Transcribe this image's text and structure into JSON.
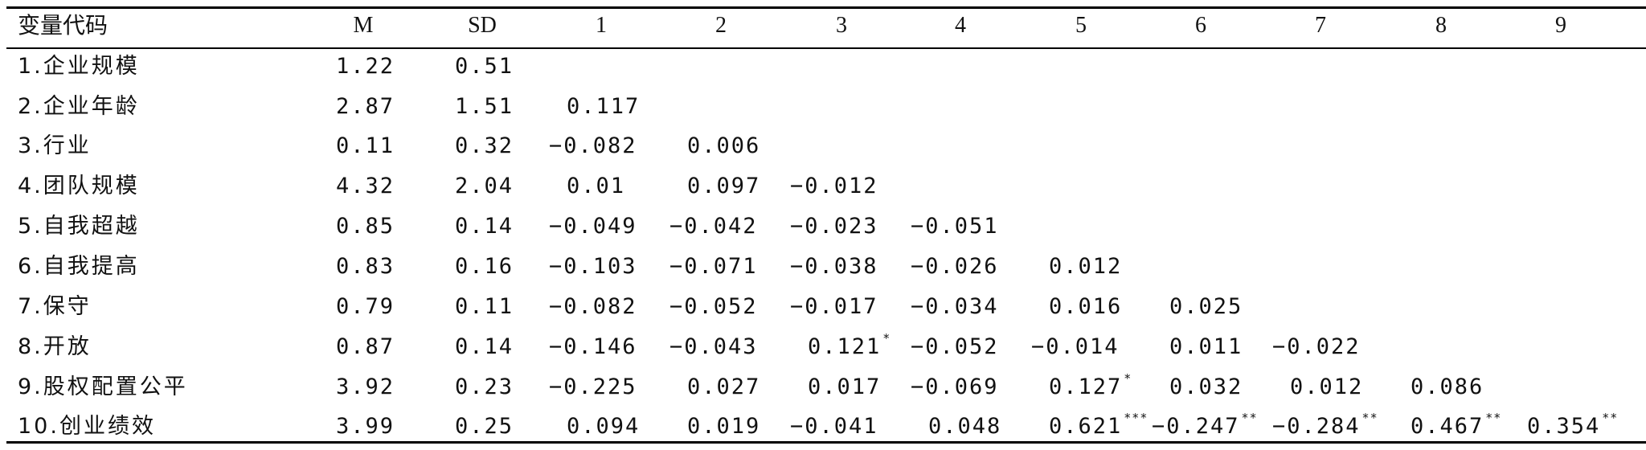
{
  "table": {
    "headers": [
      "变量代码",
      "M",
      "SD",
      "1",
      "2",
      "3",
      "4",
      "5",
      "6",
      "7",
      "8",
      "9"
    ],
    "rows": [
      {
        "label": "1.企业规模",
        "m": "1.22",
        "sd": "0.51",
        "cells": []
      },
      {
        "label": "2.企业年龄",
        "m": "2.87",
        "sd": "1.51",
        "cells": [
          {
            "v": "0.117",
            "s": ""
          }
        ]
      },
      {
        "label": "3.行业",
        "m": "0.11",
        "sd": "0.32",
        "cells": [
          {
            "v": "−0.082",
            "s": ""
          },
          {
            "v": "0.006",
            "s": ""
          }
        ]
      },
      {
        "label": "4.团队规模",
        "m": "4.32",
        "sd": "2.04",
        "cells": [
          {
            "v": "0.01",
            "s": ""
          },
          {
            "v": "0.097",
            "s": ""
          },
          {
            "v": "−0.012",
            "s": ""
          }
        ]
      },
      {
        "label": "5.自我超越",
        "m": "0.85",
        "sd": "0.14",
        "cells": [
          {
            "v": "−0.049",
            "s": ""
          },
          {
            "v": "−0.042",
            "s": ""
          },
          {
            "v": "−0.023",
            "s": ""
          },
          {
            "v": "−0.051",
            "s": ""
          }
        ]
      },
      {
        "label": "6.自我提高",
        "m": "0.83",
        "sd": "0.16",
        "cells": [
          {
            "v": "−0.103",
            "s": ""
          },
          {
            "v": "−0.071",
            "s": ""
          },
          {
            "v": "−0.038",
            "s": ""
          },
          {
            "v": "−0.026",
            "s": ""
          },
          {
            "v": "0.012",
            "s": ""
          }
        ]
      },
      {
        "label": "7.保守",
        "m": "0.79",
        "sd": "0.11",
        "cells": [
          {
            "v": "−0.082",
            "s": ""
          },
          {
            "v": "−0.052",
            "s": ""
          },
          {
            "v": "−0.017",
            "s": ""
          },
          {
            "v": "−0.034",
            "s": ""
          },
          {
            "v": "0.016",
            "s": ""
          },
          {
            "v": "0.025",
            "s": ""
          }
        ]
      },
      {
        "label": "8.开放",
        "m": "0.87",
        "sd": "0.14",
        "cells": [
          {
            "v": "−0.146",
            "s": ""
          },
          {
            "v": "−0.043",
            "s": ""
          },
          {
            "v": "0.121",
            "s": "*"
          },
          {
            "v": "−0.052",
            "s": ""
          },
          {
            "v": "−0.014",
            "s": ""
          },
          {
            "v": "0.011",
            "s": ""
          },
          {
            "v": "−0.022",
            "s": ""
          }
        ]
      },
      {
        "label": "9.股权配置公平",
        "m": "3.92",
        "sd": "0.23",
        "cells": [
          {
            "v": "−0.225",
            "s": ""
          },
          {
            "v": "0.027",
            "s": ""
          },
          {
            "v": "0.017",
            "s": ""
          },
          {
            "v": "−0.069",
            "s": ""
          },
          {
            "v": "0.127",
            "s": "*"
          },
          {
            "v": "0.032",
            "s": ""
          },
          {
            "v": "0.012",
            "s": ""
          },
          {
            "v": "0.086",
            "s": ""
          }
        ]
      },
      {
        "label": "10.创业绩效",
        "m": "3.99",
        "sd": "0.25",
        "cells": [
          {
            "v": "0.094",
            "s": ""
          },
          {
            "v": "0.019",
            "s": ""
          },
          {
            "v": "−0.041",
            "s": ""
          },
          {
            "v": "0.048",
            "s": ""
          },
          {
            "v": "0.621",
            "s": "***"
          },
          {
            "v": "−0.247",
            "s": "**"
          },
          {
            "v": "−0.284",
            "s": "**"
          },
          {
            "v": "0.467",
            "s": "**"
          },
          {
            "v": "0.354",
            "s": "**"
          }
        ]
      }
    ]
  }
}
